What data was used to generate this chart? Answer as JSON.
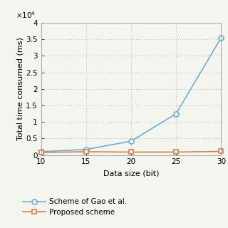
{
  "x": [
    10,
    15,
    20,
    25,
    30
  ],
  "gao_y": [
    1000,
    1700,
    4200,
    12500,
    35500
  ],
  "proposed_y": [
    800,
    1000,
    900,
    900,
    1100
  ],
  "gao_color": "#6baed6",
  "proposed_color": "#d4824a",
  "gao_label": "Scheme of Gao et al.",
  "proposed_label": "Proposed scheme",
  "xlabel": "Data size (bit)",
  "ylabel": "Total time consumed (ms)",
  "xlim": [
    10,
    30
  ],
  "ylim": [
    0,
    40000
  ],
  "ytick_vals": [
    0,
    5000,
    10000,
    15000,
    20000,
    25000,
    30000,
    35000,
    40000
  ],
  "ytick_labels": [
    "0",
    "0.5",
    "1",
    "1.5",
    "2",
    "2.5",
    "3",
    "3.5",
    "4"
  ],
  "xticks": [
    10,
    15,
    20,
    25,
    30
  ],
  "grid_color": "#c8c8c8",
  "bg_color": "#f5f5f0",
  "axis_fontsize": 8,
  "tick_fontsize": 7.5,
  "legend_fontsize": 7.5,
  "marker_size_gao": 5,
  "marker_size_proposed": 4,
  "line_width": 1.2
}
